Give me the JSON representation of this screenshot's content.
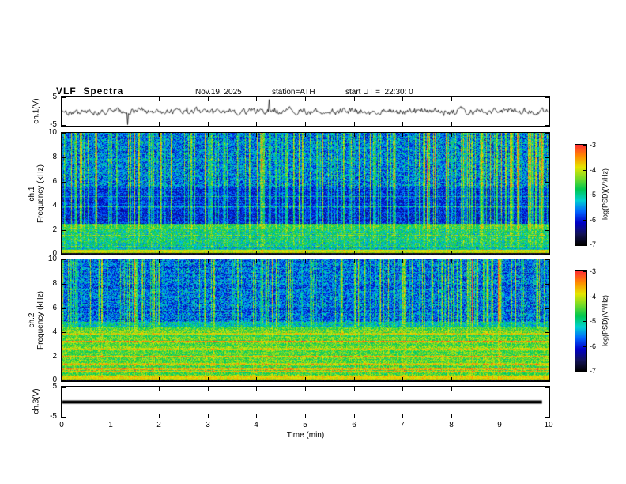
{
  "header": {
    "title": "VLF  Spectra",
    "date": "Nov.19, 2025",
    "station": "station=ATH",
    "start_ut": "start UT =  22:30: 0"
  },
  "x_axis": {
    "label": "Time (min)",
    "min": 0,
    "max": 10,
    "ticks": [
      {
        "v": 0,
        "label": "0"
      },
      {
        "v": 1,
        "label": "1"
      },
      {
        "v": 2,
        "label": "2"
      },
      {
        "v": 3,
        "label": "3"
      },
      {
        "v": 4,
        "label": "4"
      },
      {
        "v": 5,
        "label": "5"
      },
      {
        "v": 6,
        "label": "6"
      },
      {
        "v": 7,
        "label": "7"
      },
      {
        "v": 8,
        "label": "8"
      },
      {
        "v": 9,
        "label": "9"
      },
      {
        "v": 10,
        "label": "10"
      }
    ]
  },
  "colorbar": {
    "label": "log(PSD)(V²/Hz)",
    "min": -7,
    "max": -3,
    "ticks": [
      {
        "v": -3,
        "label": "-3"
      },
      {
        "v": -4,
        "label": "-4"
      },
      {
        "v": -5,
        "label": "-5"
      },
      {
        "v": -6,
        "label": "-6"
      },
      {
        "v": -7,
        "label": "-7"
      }
    ],
    "stops": [
      "#000000",
      "#14145a",
      "#0000c8",
      "#0064ff",
      "#00d2d2",
      "#00c850",
      "#78dc28",
      "#e6e600",
      "#ff8c00",
      "#ff3232"
    ]
  },
  "chart_data": [
    {
      "id": "ch1_wave",
      "type": "line",
      "ylabel": "ch.1(V)",
      "ylim": [
        -5,
        5
      ],
      "yticks": [
        {
          "v": 5,
          "label": "5"
        },
        {
          "v": 0,
          "label": ""
        },
        {
          "v": -5,
          "label": "-5"
        }
      ],
      "color": "#000000",
      "seed": 42,
      "signal": {
        "mean": 0,
        "decay": 0.6,
        "noise_amp": 0.85,
        "spike_rate": 0.013,
        "spike_amp": 3.2
      }
    },
    {
      "id": "ch1_spec",
      "type": "heatmap",
      "ylabel_lines": [
        "ch.1",
        "Frequency (kHz)"
      ],
      "ylim": [
        0,
        10
      ],
      "yticks": [
        {
          "v": 0,
          "label": "0"
        },
        {
          "v": 2,
          "label": "2"
        },
        {
          "v": 4,
          "label": "4"
        },
        {
          "v": 6,
          "label": "6"
        },
        {
          "v": 8,
          "label": "8"
        },
        {
          "v": 10,
          "label": "10"
        }
      ],
      "value_range": [
        -7,
        -3
      ],
      "seed": 7,
      "bands": [
        {
          "f": [
            0,
            0.12
          ],
          "base": 0.06,
          "noise": 0.04,
          "streak_weight": 0
        },
        {
          "f": [
            0.12,
            0.35
          ],
          "base": 0.74,
          "noise": 0.08,
          "streak_weight": 0.1
        },
        {
          "f": [
            0.35,
            0.6
          ],
          "base": 0.46,
          "noise": 0.15,
          "streak_weight": 0.2
        },
        {
          "f": [
            0.6,
            2.1
          ],
          "base": 0.52,
          "noise": 0.16,
          "streak_weight": 0.3
        },
        {
          "f": [
            2.1,
            2.5
          ],
          "base": 0.58,
          "noise": 0.13,
          "streak_weight": 0.5
        },
        {
          "f": [
            2.5,
            5.6
          ],
          "base": 0.27,
          "noise": 0.12,
          "streak_weight": 0.95
        },
        {
          "f": [
            5.6,
            10
          ],
          "base": 0.36,
          "noise": 0.17,
          "streak_weight": 1.0
        }
      ],
      "hlines": [
        {
          "f": 1.55,
          "w": 0.04,
          "boost": 0.12
        },
        {
          "f": 3.05,
          "w": 0.04,
          "boost": 0.16
        },
        {
          "f": 3.95,
          "w": 0.04,
          "boost": 0.13
        },
        {
          "f": 4.75,
          "w": 0.04,
          "boost": 0.11
        }
      ],
      "streaks": {
        "rate": 0.3,
        "min": 0.08,
        "max": 0.45,
        "strong_rate": 0.05,
        "strong_amp": 0.25
      }
    },
    {
      "id": "ch2_spec",
      "type": "heatmap",
      "ylabel_lines": [
        "ch.2",
        "Frequency (kHz)"
      ],
      "ylim": [
        0,
        10
      ],
      "yticks": [
        {
          "v": 0,
          "label": "0"
        },
        {
          "v": 2,
          "label": "2"
        },
        {
          "v": 4,
          "label": "4"
        },
        {
          "v": 6,
          "label": "6"
        },
        {
          "v": 8,
          "label": "8"
        },
        {
          "v": 10,
          "label": "10"
        }
      ],
      "value_range": [
        -7,
        -3
      ],
      "seed": 13,
      "bands": [
        {
          "f": [
            0,
            0.12
          ],
          "base": 0.06,
          "noise": 0.04,
          "streak_weight": 0
        },
        {
          "f": [
            0.12,
            0.4
          ],
          "base": 0.78,
          "noise": 0.08,
          "streak_weight": 0.1
        },
        {
          "f": [
            0.4,
            4.4
          ],
          "base": 0.62,
          "noise": 0.13,
          "streak_weight": 0.15,
          "stripes": {
            "period": 0.62,
            "amp": 0.22,
            "hot_rate": 0.07,
            "hot_amp": 0.2
          }
        },
        {
          "f": [
            4.4,
            4.9
          ],
          "base": 0.48,
          "noise": 0.15,
          "streak_weight": 0.5
        },
        {
          "f": [
            4.9,
            10
          ],
          "base": 0.33,
          "noise": 0.16,
          "streak_weight": 1.0
        }
      ],
      "hlines": [
        {
          "f": 0.9,
          "w": 0.05,
          "boost": 0.18
        },
        {
          "f": 1.95,
          "w": 0.05,
          "boost": 0.15
        }
      ],
      "streaks": {
        "rate": 0.27,
        "min": 0.08,
        "max": 0.42,
        "strong_rate": 0.04,
        "strong_amp": 0.25
      }
    },
    {
      "id": "ch3_wave",
      "type": "line",
      "ylabel": "ch.3(V)",
      "ylim": [
        -5,
        5
      ],
      "yticks": [
        {
          "v": 5,
          "label": "5"
        },
        {
          "v": 0,
          "label": ""
        },
        {
          "v": -5,
          "label": "-5"
        }
      ],
      "color": "#000000",
      "seed": 9,
      "signal": {
        "flat": true,
        "value": 0,
        "line_width": 4,
        "x_end": 0.985
      }
    }
  ]
}
